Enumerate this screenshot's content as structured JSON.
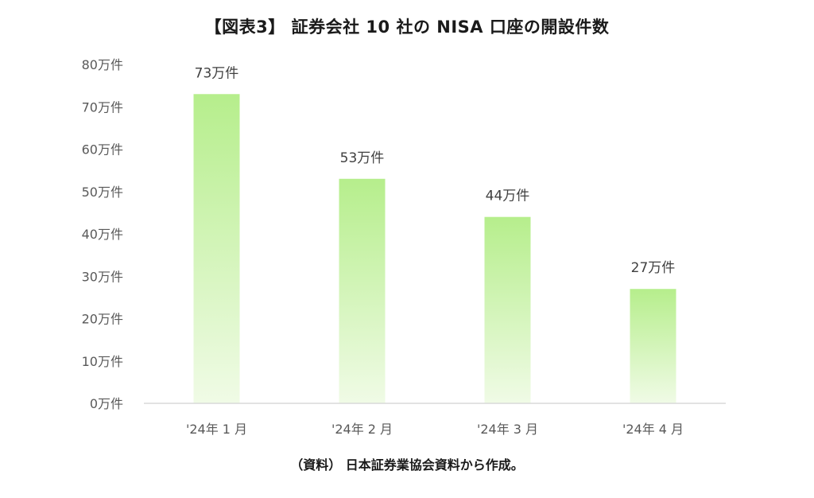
{
  "title": "【図表3】 証券会社 10 社の NISA 口座の開設件数",
  "source": "（資料） 日本証券業協会資料から作成。",
  "colors": {
    "bar_top": "#b6ee8c",
    "bar_bottom": "#f0fbe6",
    "axis": "#d9d9d9"
  },
  "chart_data": {
    "type": "bar",
    "title": "【図表3】 証券会社 10 社の NISA 口座の開設件数",
    "categories": [
      "'24年 1 月",
      "'24年 2 月",
      "'24年 3 月",
      "'24年 4 月"
    ],
    "values": [
      73,
      53,
      44,
      27
    ],
    "data_labels": [
      "73万件",
      "53万件",
      "44万件",
      "27万件"
    ],
    "unit": "万件",
    "ylim": [
      0,
      80
    ],
    "yticks": [
      0,
      10,
      20,
      30,
      40,
      50,
      60,
      70,
      80
    ],
    "ytick_labels": [
      "0万件",
      "10万件",
      "20万件",
      "30万件",
      "40万件",
      "50万件",
      "60万件",
      "70万件",
      "80万件"
    ],
    "grid": false,
    "legend": "none"
  }
}
